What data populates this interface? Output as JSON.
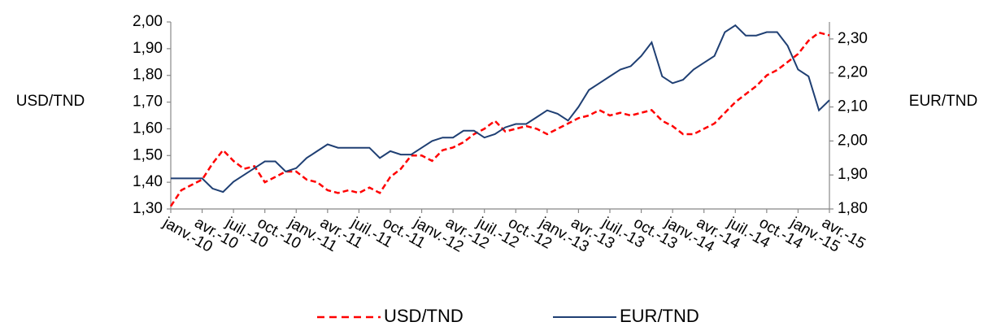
{
  "chart_data": {
    "type": "line",
    "y_label": "USD/TND",
    "y2_label": "EUR/TND",
    "categories": [
      "janv.-10",
      null,
      null,
      "avr.-10",
      null,
      null,
      "juil.-10",
      null,
      null,
      "oct.-10",
      null,
      null,
      "janv.-11",
      null,
      null,
      "avr.-11",
      null,
      null,
      "juil.-11",
      null,
      null,
      "oct.-11",
      null,
      null,
      "janv.-12",
      null,
      null,
      "avr.-12",
      null,
      null,
      "juil.-12",
      null,
      null,
      "oct.-12",
      null,
      null,
      "janv.-13",
      null,
      null,
      "avr.-13",
      null,
      null,
      "juil.-13",
      null,
      null,
      "oct.-13",
      null,
      null,
      "janv.-14",
      null,
      null,
      "avr.-14",
      null,
      null,
      "juil.-14",
      null,
      null,
      "oct.-14",
      null,
      null,
      "janv.-15",
      null,
      null,
      "avr.-15"
    ],
    "series": [
      {
        "name": "USD/TND",
        "color": "#ff0000",
        "dash": true,
        "values": [
          1.31,
          1.37,
          1.39,
          1.41,
          1.47,
          1.52,
          1.48,
          1.45,
          1.46,
          1.4,
          1.42,
          1.44,
          1.44,
          1.41,
          1.4,
          1.37,
          1.36,
          1.37,
          1.36,
          1.38,
          1.36,
          1.42,
          1.45,
          1.5,
          1.5,
          1.48,
          1.52,
          1.53,
          1.55,
          1.58,
          1.6,
          1.63,
          1.59,
          1.6,
          1.61,
          1.6,
          1.58,
          1.6,
          1.62,
          1.64,
          1.65,
          1.67,
          1.65,
          1.66,
          1.65,
          1.66,
          1.67,
          1.63,
          1.61,
          1.58,
          1.58,
          1.6,
          1.62,
          1.66,
          1.7,
          1.73,
          1.76,
          1.8,
          1.82,
          1.85,
          1.88,
          1.93,
          1.96,
          1.95
        ]
      },
      {
        "name": "EUR/TND",
        "color": "#1f3f73",
        "axis": "y2",
        "values": [
          1.89,
          1.89,
          1.89,
          1.89,
          1.86,
          1.85,
          1.88,
          1.9,
          1.92,
          1.94,
          1.94,
          1.91,
          1.92,
          1.95,
          1.97,
          1.99,
          1.98,
          1.98,
          1.98,
          1.98,
          1.95,
          1.97,
          1.96,
          1.96,
          1.98,
          2.0,
          2.01,
          2.01,
          2.03,
          2.03,
          2.01,
          2.02,
          2.04,
          2.05,
          2.05,
          2.07,
          2.09,
          2.08,
          2.06,
          2.1,
          2.15,
          2.17,
          2.19,
          2.21,
          2.22,
          2.25,
          2.29,
          2.19,
          2.17,
          2.18,
          2.21,
          2.23,
          2.25,
          2.32,
          2.34,
          2.31,
          2.31,
          2.32,
          2.32,
          2.28,
          2.21,
          2.19,
          2.09,
          2.12
        ]
      }
    ],
    "ylim": [
      1.3,
      2.0
    ],
    "yticks": [
      {
        "value": 1.3,
        "label": "1,30"
      },
      {
        "value": 1.4,
        "label": "1,40"
      },
      {
        "value": 1.5,
        "label": "1,50"
      },
      {
        "value": 1.6,
        "label": "1,60"
      },
      {
        "value": 1.7,
        "label": "1,70"
      },
      {
        "value": 1.8,
        "label": "1,80"
      },
      {
        "value": 1.9,
        "label": "1,90"
      },
      {
        "value": 2.0,
        "label": "2,00"
      }
    ],
    "y2lim": [
      1.8,
      2.35
    ],
    "y2ticks": [
      {
        "value": 1.8,
        "label": "1,80"
      },
      {
        "value": 1.9,
        "label": "1,90"
      },
      {
        "value": 2.0,
        "label": "2,00"
      },
      {
        "value": 2.1,
        "label": "2,10"
      },
      {
        "value": 2.2,
        "label": "2,20"
      },
      {
        "value": 2.3,
        "label": "2,30"
      }
    ],
    "legend": "bottom"
  }
}
